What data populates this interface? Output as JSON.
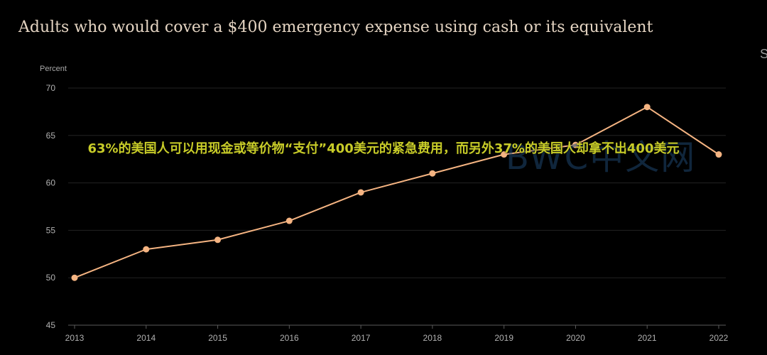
{
  "chart_data": {
    "type": "line",
    "title": "Adults who would cover a $400 emergency expense using cash or its equivalent",
    "ylabel": "Percent",
    "xlabel": "",
    "x": [
      "2013",
      "2014",
      "2015",
      "2016",
      "2017",
      "2018",
      "2019",
      "2020",
      "2021",
      "2022"
    ],
    "series": [
      {
        "name": "",
        "values": [
          50,
          53,
          54,
          56,
          59,
          61,
          63,
          64,
          68,
          63
        ]
      }
    ],
    "ylim": [
      45,
      70
    ],
    "yticks": [
      "45",
      "50",
      "55",
      "60",
      "65",
      "70"
    ],
    "grid": true,
    "legend": "none"
  },
  "overlay": {
    "caption": "63%的美国人可以用现金或等价物“支付”400美元的紧急费用，而另外37%的美国人却拿不出400美元",
    "watermark": "BWC中文网",
    "edge_text": "S"
  },
  "colors": {
    "background": "#000000",
    "line": "#f5b482",
    "caption": "#c8cc28",
    "title": "#e4d4c2"
  }
}
